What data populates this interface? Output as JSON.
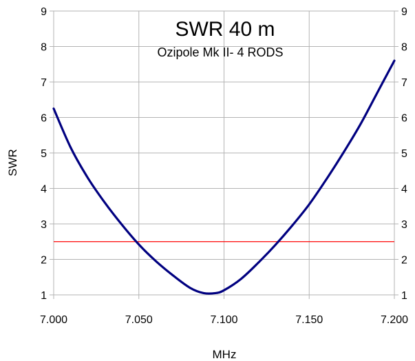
{
  "chart_data": {
    "type": "line",
    "title": "SWR 40 m",
    "subtitle": "Ozipole Mk II- 4  RODS",
    "xlabel": "MHz",
    "ylabel": "SWR",
    "xlim": [
      7.0,
      7.2
    ],
    "ylim": [
      1,
      9
    ],
    "x_ticks": [
      "7.000",
      "7.050",
      "7.100",
      "7.150",
      "7.200"
    ],
    "x_tick_values": [
      7.0,
      7.05,
      7.1,
      7.15,
      7.2
    ],
    "y_ticks": [
      "1",
      "2",
      "3",
      "4",
      "5",
      "6",
      "7",
      "8",
      "9"
    ],
    "y_tick_values": [
      1,
      2,
      3,
      4,
      5,
      6,
      7,
      8,
      9
    ],
    "right_axis_ticks": true,
    "grid": true,
    "series": [
      {
        "color": "#000080",
        "x": [
          7.0,
          7.01,
          7.02,
          7.03,
          7.04,
          7.05,
          7.06,
          7.07,
          7.08,
          7.088,
          7.095,
          7.1,
          7.11,
          7.12,
          7.13,
          7.14,
          7.15,
          7.16,
          7.17,
          7.18,
          7.19,
          7.2
        ],
        "values": [
          6.25,
          5.15,
          4.3,
          3.6,
          2.98,
          2.42,
          1.95,
          1.55,
          1.2,
          1.05,
          1.05,
          1.13,
          1.45,
          1.9,
          2.4,
          2.95,
          3.55,
          4.25,
          5.0,
          5.8,
          6.7,
          7.6
        ]
      }
    ],
    "reference_line": {
      "y": 2.5,
      "color": "#ff0000"
    }
  }
}
